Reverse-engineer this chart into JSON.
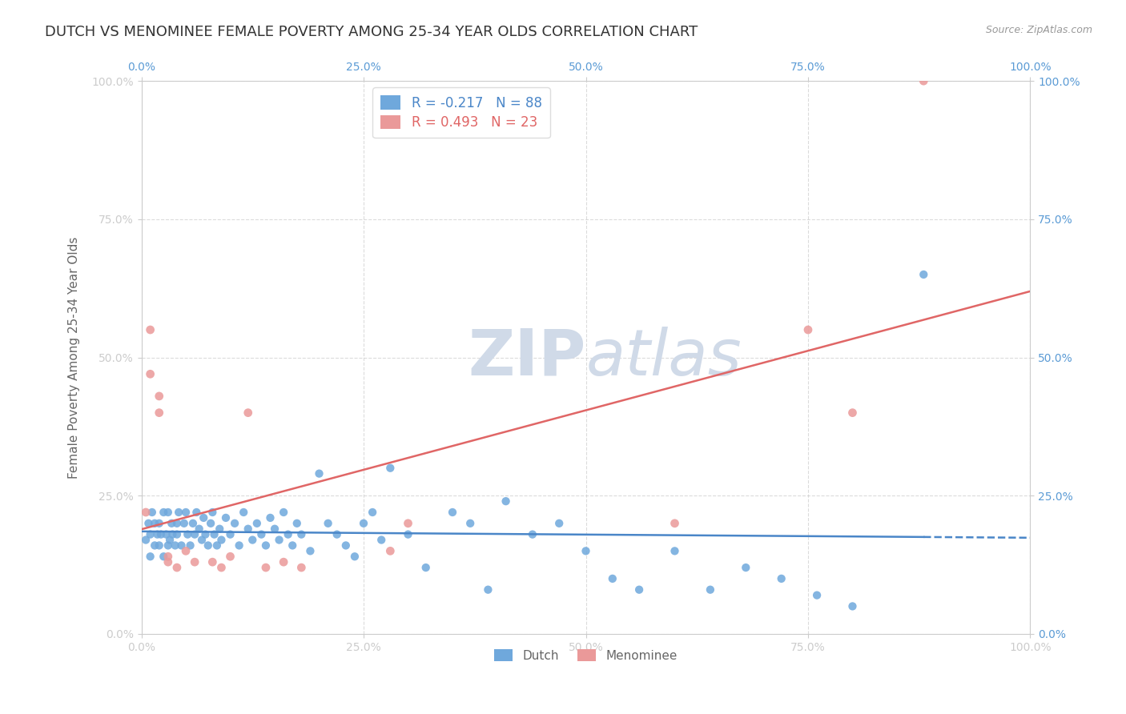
{
  "title": "DUTCH VS MENOMINEE FEMALE POVERTY AMONG 25-34 YEAR OLDS CORRELATION CHART",
  "source": "Source: ZipAtlas.com",
  "ylabel": "Female Poverty Among 25-34 Year Olds",
  "xlim": [
    0,
    1.0
  ],
  "ylim": [
    0,
    1.0
  ],
  "xticks": [
    0.0,
    0.25,
    0.5,
    0.75,
    1.0
  ],
  "yticks": [
    0.0,
    0.25,
    0.5,
    0.75,
    1.0
  ],
  "xticklabels": [
    "0.0%",
    "25.0%",
    "50.0%",
    "75.0%",
    "100.0%"
  ],
  "yticklabels": [
    "0.0%",
    "25.0%",
    "50.0%",
    "75.0%",
    "100.0%"
  ],
  "dutch_color": "#6fa8dc",
  "menominee_color": "#ea9999",
  "dutch_line_color": "#4a86c8",
  "menominee_line_color": "#e06666",
  "background_color": "#ffffff",
  "grid_color": "#cccccc",
  "watermark_color": "#d0dae8",
  "legend_R_dutch": "-0.217",
  "legend_N_dutch": "88",
  "legend_R_menominee": "0.493",
  "legend_N_menominee": "23",
  "dutch_x": [
    0.005,
    0.008,
    0.01,
    0.01,
    0.012,
    0.015,
    0.015,
    0.018,
    0.02,
    0.02,
    0.022,
    0.025,
    0.025,
    0.028,
    0.03,
    0.03,
    0.032,
    0.034,
    0.035,
    0.038,
    0.04,
    0.04,
    0.042,
    0.045,
    0.048,
    0.05,
    0.052,
    0.055,
    0.058,
    0.06,
    0.062,
    0.065,
    0.068,
    0.07,
    0.072,
    0.075,
    0.078,
    0.08,
    0.082,
    0.085,
    0.088,
    0.09,
    0.095,
    0.1,
    0.105,
    0.11,
    0.115,
    0.12,
    0.125,
    0.13,
    0.135,
    0.14,
    0.145,
    0.15,
    0.155,
    0.16,
    0.165,
    0.17,
    0.175,
    0.18,
    0.19,
    0.2,
    0.21,
    0.22,
    0.23,
    0.24,
    0.25,
    0.26,
    0.27,
    0.28,
    0.3,
    0.32,
    0.35,
    0.37,
    0.39,
    0.41,
    0.44,
    0.47,
    0.5,
    0.53,
    0.56,
    0.6,
    0.64,
    0.68,
    0.72,
    0.76,
    0.8,
    0.88
  ],
  "dutch_y": [
    0.17,
    0.2,
    0.18,
    0.14,
    0.22,
    0.16,
    0.2,
    0.18,
    0.16,
    0.2,
    0.18,
    0.22,
    0.14,
    0.18,
    0.16,
    0.22,
    0.17,
    0.2,
    0.18,
    0.16,
    0.2,
    0.18,
    0.22,
    0.16,
    0.2,
    0.22,
    0.18,
    0.16,
    0.2,
    0.18,
    0.22,
    0.19,
    0.17,
    0.21,
    0.18,
    0.16,
    0.2,
    0.22,
    0.18,
    0.16,
    0.19,
    0.17,
    0.21,
    0.18,
    0.2,
    0.16,
    0.22,
    0.19,
    0.17,
    0.2,
    0.18,
    0.16,
    0.21,
    0.19,
    0.17,
    0.22,
    0.18,
    0.16,
    0.2,
    0.18,
    0.15,
    0.29,
    0.2,
    0.18,
    0.16,
    0.14,
    0.2,
    0.22,
    0.17,
    0.3,
    0.18,
    0.12,
    0.22,
    0.2,
    0.08,
    0.24,
    0.18,
    0.2,
    0.15,
    0.1,
    0.08,
    0.15,
    0.08,
    0.12,
    0.1,
    0.07,
    0.05,
    0.65
  ],
  "menominee_x": [
    0.005,
    0.01,
    0.01,
    0.02,
    0.02,
    0.03,
    0.03,
    0.04,
    0.05,
    0.06,
    0.08,
    0.09,
    0.1,
    0.12,
    0.14,
    0.16,
    0.18,
    0.28,
    0.3,
    0.6,
    0.75,
    0.8,
    0.88
  ],
  "menominee_y": [
    0.22,
    0.55,
    0.47,
    0.43,
    0.4,
    0.14,
    0.13,
    0.12,
    0.15,
    0.13,
    0.13,
    0.12,
    0.14,
    0.4,
    0.12,
    0.13,
    0.12,
    0.15,
    0.2,
    0.2,
    0.55,
    0.4,
    1.0
  ],
  "title_fontsize": 13,
  "axis_label_fontsize": 11,
  "tick_fontsize": 10,
  "legend_fontsize": 12
}
